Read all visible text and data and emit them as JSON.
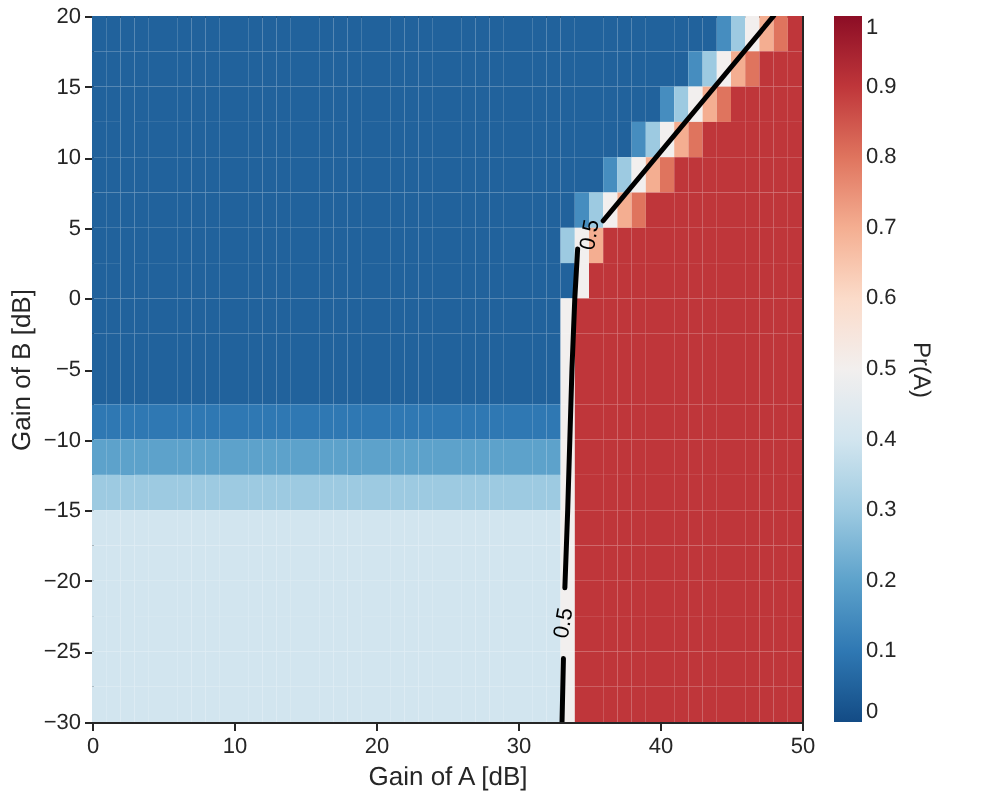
{
  "chart_data": {
    "type": "heatmap",
    "xlabel": "Gain of A [dB]",
    "ylabel": "Gain of B [dB]",
    "clabel": "Pr(A)",
    "xlim": [
      0,
      50
    ],
    "ylim": [
      -30,
      20
    ],
    "xticks": [
      0,
      10,
      20,
      30,
      40,
      50
    ],
    "yticks": [
      -30,
      -25,
      -20,
      -15,
      -10,
      -5,
      0,
      5,
      10,
      15,
      20
    ],
    "clim": [
      0,
      1
    ],
    "cticks": [
      0,
      0.1,
      0.2,
      0.3,
      0.4,
      0.5,
      0.6,
      0.7,
      0.8,
      0.9,
      1
    ],
    "cells": [
      [
        0.05,
        0.05,
        0.05,
        0.05,
        0.05,
        0.05,
        0.05,
        0.05,
        0.05,
        0.05,
        0.05,
        0.05,
        0.05,
        0.05,
        0.05,
        0.05,
        0.05,
        0.05,
        0.05,
        0.05,
        0.05,
        0.05,
        0.05,
        0.05,
        0.05,
        0.05,
        0.05,
        0.05,
        0.05,
        0.05,
        0.05,
        0.05,
        0.05,
        0.05,
        0.05,
        0.05,
        0.05,
        0.05,
        0.05,
        0.05,
        0.05,
        0.05,
        0.05,
        0.05,
        0.15,
        0.3,
        0.5,
        0.7,
        0.8,
        0.9
      ],
      [
        0.05,
        0.05,
        0.05,
        0.05,
        0.05,
        0.05,
        0.05,
        0.05,
        0.05,
        0.05,
        0.05,
        0.05,
        0.05,
        0.05,
        0.05,
        0.05,
        0.05,
        0.05,
        0.05,
        0.05,
        0.05,
        0.05,
        0.05,
        0.05,
        0.05,
        0.05,
        0.05,
        0.05,
        0.05,
        0.05,
        0.05,
        0.05,
        0.05,
        0.05,
        0.05,
        0.05,
        0.05,
        0.05,
        0.05,
        0.05,
        0.05,
        0.05,
        0.15,
        0.3,
        0.5,
        0.7,
        0.8,
        0.9,
        0.9,
        0.9
      ],
      [
        0.05,
        0.05,
        0.05,
        0.05,
        0.05,
        0.05,
        0.05,
        0.05,
        0.05,
        0.05,
        0.05,
        0.05,
        0.05,
        0.05,
        0.05,
        0.05,
        0.05,
        0.05,
        0.05,
        0.05,
        0.05,
        0.05,
        0.05,
        0.05,
        0.05,
        0.05,
        0.05,
        0.05,
        0.05,
        0.05,
        0.05,
        0.05,
        0.05,
        0.05,
        0.05,
        0.05,
        0.05,
        0.05,
        0.05,
        0.05,
        0.15,
        0.3,
        0.5,
        0.7,
        0.8,
        0.9,
        0.9,
        0.9,
        0.9,
        0.9
      ],
      [
        0.05,
        0.05,
        0.05,
        0.05,
        0.05,
        0.05,
        0.05,
        0.05,
        0.05,
        0.05,
        0.05,
        0.05,
        0.05,
        0.05,
        0.05,
        0.05,
        0.05,
        0.05,
        0.05,
        0.05,
        0.05,
        0.05,
        0.05,
        0.05,
        0.05,
        0.05,
        0.05,
        0.05,
        0.05,
        0.05,
        0.05,
        0.05,
        0.05,
        0.05,
        0.05,
        0.05,
        0.05,
        0.05,
        0.15,
        0.3,
        0.5,
        0.7,
        0.8,
        0.9,
        0.9,
        0.9,
        0.9,
        0.9,
        0.9,
        0.9
      ],
      [
        0.05,
        0.05,
        0.05,
        0.05,
        0.05,
        0.05,
        0.05,
        0.05,
        0.05,
        0.05,
        0.05,
        0.05,
        0.05,
        0.05,
        0.05,
        0.05,
        0.05,
        0.05,
        0.05,
        0.05,
        0.05,
        0.05,
        0.05,
        0.05,
        0.05,
        0.05,
        0.05,
        0.05,
        0.05,
        0.05,
        0.05,
        0.05,
        0.05,
        0.05,
        0.05,
        0.05,
        0.15,
        0.3,
        0.5,
        0.7,
        0.8,
        0.9,
        0.9,
        0.9,
        0.9,
        0.9,
        0.9,
        0.9,
        0.9,
        0.9
      ],
      [
        0.05,
        0.05,
        0.05,
        0.05,
        0.05,
        0.05,
        0.05,
        0.05,
        0.05,
        0.05,
        0.05,
        0.05,
        0.05,
        0.05,
        0.05,
        0.05,
        0.05,
        0.05,
        0.05,
        0.05,
        0.05,
        0.05,
        0.05,
        0.05,
        0.05,
        0.05,
        0.05,
        0.05,
        0.05,
        0.05,
        0.05,
        0.05,
        0.05,
        0.05,
        0.15,
        0.3,
        0.5,
        0.7,
        0.8,
        0.9,
        0.9,
        0.9,
        0.9,
        0.9,
        0.9,
        0.9,
        0.9,
        0.9,
        0.9,
        0.9
      ],
      [
        0.05,
        0.05,
        0.05,
        0.05,
        0.05,
        0.05,
        0.05,
        0.05,
        0.05,
        0.05,
        0.05,
        0.05,
        0.05,
        0.05,
        0.05,
        0.05,
        0.05,
        0.05,
        0.05,
        0.05,
        0.05,
        0.05,
        0.05,
        0.05,
        0.05,
        0.05,
        0.05,
        0.05,
        0.05,
        0.05,
        0.05,
        0.05,
        0.05,
        0.3,
        0.5,
        0.7,
        0.9,
        0.9,
        0.9,
        0.9,
        0.9,
        0.9,
        0.9,
        0.9,
        0.9,
        0.9,
        0.9,
        0.9,
        0.9,
        0.9
      ],
      [
        0.05,
        0.05,
        0.05,
        0.05,
        0.05,
        0.05,
        0.05,
        0.05,
        0.05,
        0.05,
        0.05,
        0.05,
        0.05,
        0.05,
        0.05,
        0.05,
        0.05,
        0.05,
        0.05,
        0.05,
        0.05,
        0.05,
        0.05,
        0.05,
        0.05,
        0.05,
        0.05,
        0.05,
        0.05,
        0.05,
        0.05,
        0.05,
        0.05,
        0.05,
        0.5,
        0.9,
        0.9,
        0.9,
        0.9,
        0.9,
        0.9,
        0.9,
        0.9,
        0.9,
        0.9,
        0.9,
        0.9,
        0.9,
        0.9,
        0.9
      ],
      [
        0.05,
        0.05,
        0.05,
        0.05,
        0.05,
        0.05,
        0.05,
        0.05,
        0.05,
        0.05,
        0.05,
        0.05,
        0.05,
        0.05,
        0.05,
        0.05,
        0.05,
        0.05,
        0.05,
        0.05,
        0.05,
        0.05,
        0.05,
        0.05,
        0.05,
        0.05,
        0.05,
        0.05,
        0.05,
        0.05,
        0.05,
        0.05,
        0.05,
        0.5,
        0.9,
        0.9,
        0.9,
        0.9,
        0.9,
        0.9,
        0.9,
        0.9,
        0.9,
        0.9,
        0.9,
        0.9,
        0.9,
        0.9,
        0.9,
        0.9
      ],
      [
        0.05,
        0.05,
        0.05,
        0.05,
        0.05,
        0.05,
        0.05,
        0.05,
        0.05,
        0.05,
        0.05,
        0.05,
        0.05,
        0.05,
        0.05,
        0.05,
        0.05,
        0.05,
        0.05,
        0.05,
        0.05,
        0.05,
        0.05,
        0.05,
        0.05,
        0.05,
        0.05,
        0.05,
        0.05,
        0.05,
        0.05,
        0.05,
        0.05,
        0.5,
        0.9,
        0.9,
        0.9,
        0.9,
        0.9,
        0.9,
        0.9,
        0.9,
        0.9,
        0.9,
        0.9,
        0.9,
        0.9,
        0.9,
        0.9,
        0.9
      ],
      [
        0.05,
        0.05,
        0.05,
        0.05,
        0.05,
        0.05,
        0.05,
        0.05,
        0.05,
        0.05,
        0.05,
        0.05,
        0.05,
        0.05,
        0.05,
        0.05,
        0.05,
        0.05,
        0.05,
        0.05,
        0.05,
        0.05,
        0.05,
        0.05,
        0.05,
        0.05,
        0.05,
        0.05,
        0.05,
        0.05,
        0.05,
        0.05,
        0.05,
        0.5,
        0.9,
        0.9,
        0.9,
        0.9,
        0.9,
        0.9,
        0.9,
        0.9,
        0.9,
        0.9,
        0.9,
        0.9,
        0.9,
        0.9,
        0.9,
        0.9
      ],
      [
        0.1,
        0.1,
        0.1,
        0.1,
        0.1,
        0.1,
        0.1,
        0.1,
        0.1,
        0.1,
        0.1,
        0.1,
        0.1,
        0.1,
        0.1,
        0.1,
        0.1,
        0.1,
        0.1,
        0.1,
        0.1,
        0.1,
        0.1,
        0.1,
        0.1,
        0.1,
        0.1,
        0.1,
        0.1,
        0.1,
        0.1,
        0.1,
        0.1,
        0.5,
        0.9,
        0.9,
        0.9,
        0.9,
        0.9,
        0.9,
        0.9,
        0.9,
        0.9,
        0.9,
        0.9,
        0.9,
        0.9,
        0.9,
        0.9,
        0.9
      ],
      [
        0.2,
        0.2,
        0.2,
        0.2,
        0.2,
        0.2,
        0.2,
        0.2,
        0.2,
        0.2,
        0.2,
        0.2,
        0.2,
        0.2,
        0.2,
        0.2,
        0.2,
        0.2,
        0.2,
        0.2,
        0.2,
        0.2,
        0.2,
        0.2,
        0.2,
        0.2,
        0.2,
        0.2,
        0.2,
        0.2,
        0.2,
        0.2,
        0.2,
        0.5,
        0.9,
        0.9,
        0.9,
        0.9,
        0.9,
        0.9,
        0.9,
        0.9,
        0.9,
        0.9,
        0.9,
        0.9,
        0.9,
        0.9,
        0.9,
        0.9
      ],
      [
        0.3,
        0.3,
        0.3,
        0.3,
        0.3,
        0.3,
        0.3,
        0.3,
        0.3,
        0.3,
        0.3,
        0.3,
        0.3,
        0.3,
        0.3,
        0.3,
        0.3,
        0.3,
        0.3,
        0.3,
        0.3,
        0.3,
        0.3,
        0.3,
        0.3,
        0.3,
        0.3,
        0.3,
        0.3,
        0.3,
        0.3,
        0.3,
        0.3,
        0.5,
        0.9,
        0.9,
        0.9,
        0.9,
        0.9,
        0.9,
        0.9,
        0.9,
        0.9,
        0.9,
        0.9,
        0.9,
        0.9,
        0.9,
        0.9,
        0.9
      ],
      [
        0.4,
        0.4,
        0.4,
        0.4,
        0.4,
        0.4,
        0.4,
        0.4,
        0.4,
        0.4,
        0.4,
        0.4,
        0.4,
        0.4,
        0.4,
        0.4,
        0.4,
        0.4,
        0.4,
        0.4,
        0.4,
        0.4,
        0.4,
        0.4,
        0.4,
        0.4,
        0.4,
        0.4,
        0.4,
        0.4,
        0.4,
        0.4,
        0.4,
        0.5,
        0.9,
        0.9,
        0.9,
        0.9,
        0.9,
        0.9,
        0.9,
        0.9,
        0.9,
        0.9,
        0.9,
        0.9,
        0.9,
        0.9,
        0.9,
        0.9
      ],
      [
        0.4,
        0.4,
        0.4,
        0.4,
        0.4,
        0.4,
        0.4,
        0.4,
        0.4,
        0.4,
        0.4,
        0.4,
        0.4,
        0.4,
        0.4,
        0.4,
        0.4,
        0.4,
        0.4,
        0.4,
        0.4,
        0.4,
        0.4,
        0.4,
        0.4,
        0.4,
        0.4,
        0.4,
        0.4,
        0.4,
        0.4,
        0.4,
        0.4,
        0.5,
        0.9,
        0.9,
        0.9,
        0.9,
        0.9,
        0.9,
        0.9,
        0.9,
        0.9,
        0.9,
        0.9,
        0.9,
        0.9,
        0.9,
        0.9,
        0.9
      ],
      [
        0.4,
        0.4,
        0.4,
        0.4,
        0.4,
        0.4,
        0.4,
        0.4,
        0.4,
        0.4,
        0.4,
        0.4,
        0.4,
        0.4,
        0.4,
        0.4,
        0.4,
        0.4,
        0.4,
        0.4,
        0.4,
        0.4,
        0.4,
        0.4,
        0.4,
        0.4,
        0.4,
        0.4,
        0.4,
        0.4,
        0.4,
        0.4,
        0.4,
        0.5,
        0.9,
        0.9,
        0.9,
        0.9,
        0.9,
        0.9,
        0.9,
        0.9,
        0.9,
        0.9,
        0.9,
        0.9,
        0.9,
        0.9,
        0.9,
        0.9
      ],
      [
        0.4,
        0.4,
        0.4,
        0.4,
        0.4,
        0.4,
        0.4,
        0.4,
        0.4,
        0.4,
        0.4,
        0.4,
        0.4,
        0.4,
        0.4,
        0.4,
        0.4,
        0.4,
        0.4,
        0.4,
        0.4,
        0.4,
        0.4,
        0.4,
        0.4,
        0.4,
        0.4,
        0.4,
        0.4,
        0.4,
        0.4,
        0.4,
        0.4,
        0.5,
        0.9,
        0.9,
        0.9,
        0.9,
        0.9,
        0.9,
        0.9,
        0.9,
        0.9,
        0.9,
        0.9,
        0.9,
        0.9,
        0.9,
        0.9,
        0.9
      ],
      [
        0.4,
        0.4,
        0.4,
        0.4,
        0.4,
        0.4,
        0.4,
        0.4,
        0.4,
        0.4,
        0.4,
        0.4,
        0.4,
        0.4,
        0.4,
        0.4,
        0.4,
        0.4,
        0.4,
        0.4,
        0.4,
        0.4,
        0.4,
        0.4,
        0.4,
        0.4,
        0.4,
        0.4,
        0.4,
        0.4,
        0.4,
        0.4,
        0.4,
        0.5,
        0.9,
        0.9,
        0.9,
        0.9,
        0.9,
        0.9,
        0.9,
        0.9,
        0.9,
        0.9,
        0.9,
        0.9,
        0.9,
        0.9,
        0.9,
        0.9
      ],
      [
        0.4,
        0.4,
        0.4,
        0.4,
        0.4,
        0.4,
        0.4,
        0.4,
        0.4,
        0.4,
        0.4,
        0.4,
        0.4,
        0.4,
        0.4,
        0.4,
        0.4,
        0.4,
        0.4,
        0.4,
        0.4,
        0.4,
        0.4,
        0.4,
        0.4,
        0.4,
        0.4,
        0.4,
        0.4,
        0.4,
        0.4,
        0.4,
        0.4,
        0.5,
        0.9,
        0.9,
        0.9,
        0.9,
        0.9,
        0.9,
        0.9,
        0.9,
        0.9,
        0.9,
        0.9,
        0.9,
        0.9,
        0.9,
        0.9,
        0.9
      ]
    ],
    "series": [
      {
        "type": "line",
        "color": "#000000",
        "x": [
          33.1,
          33.2,
          33.25,
          33.3,
          33.5,
          33.8,
          34,
          34.2,
          34.8,
          36,
          48
        ],
        "values": [
          -30,
          -25.5,
          null,
          -20.5,
          -15,
          -5,
          0,
          3.5,
          null,
          5.5,
          20
        ]
      }
    ],
    "annotations": [
      "0.5",
      "0.5"
    ]
  }
}
